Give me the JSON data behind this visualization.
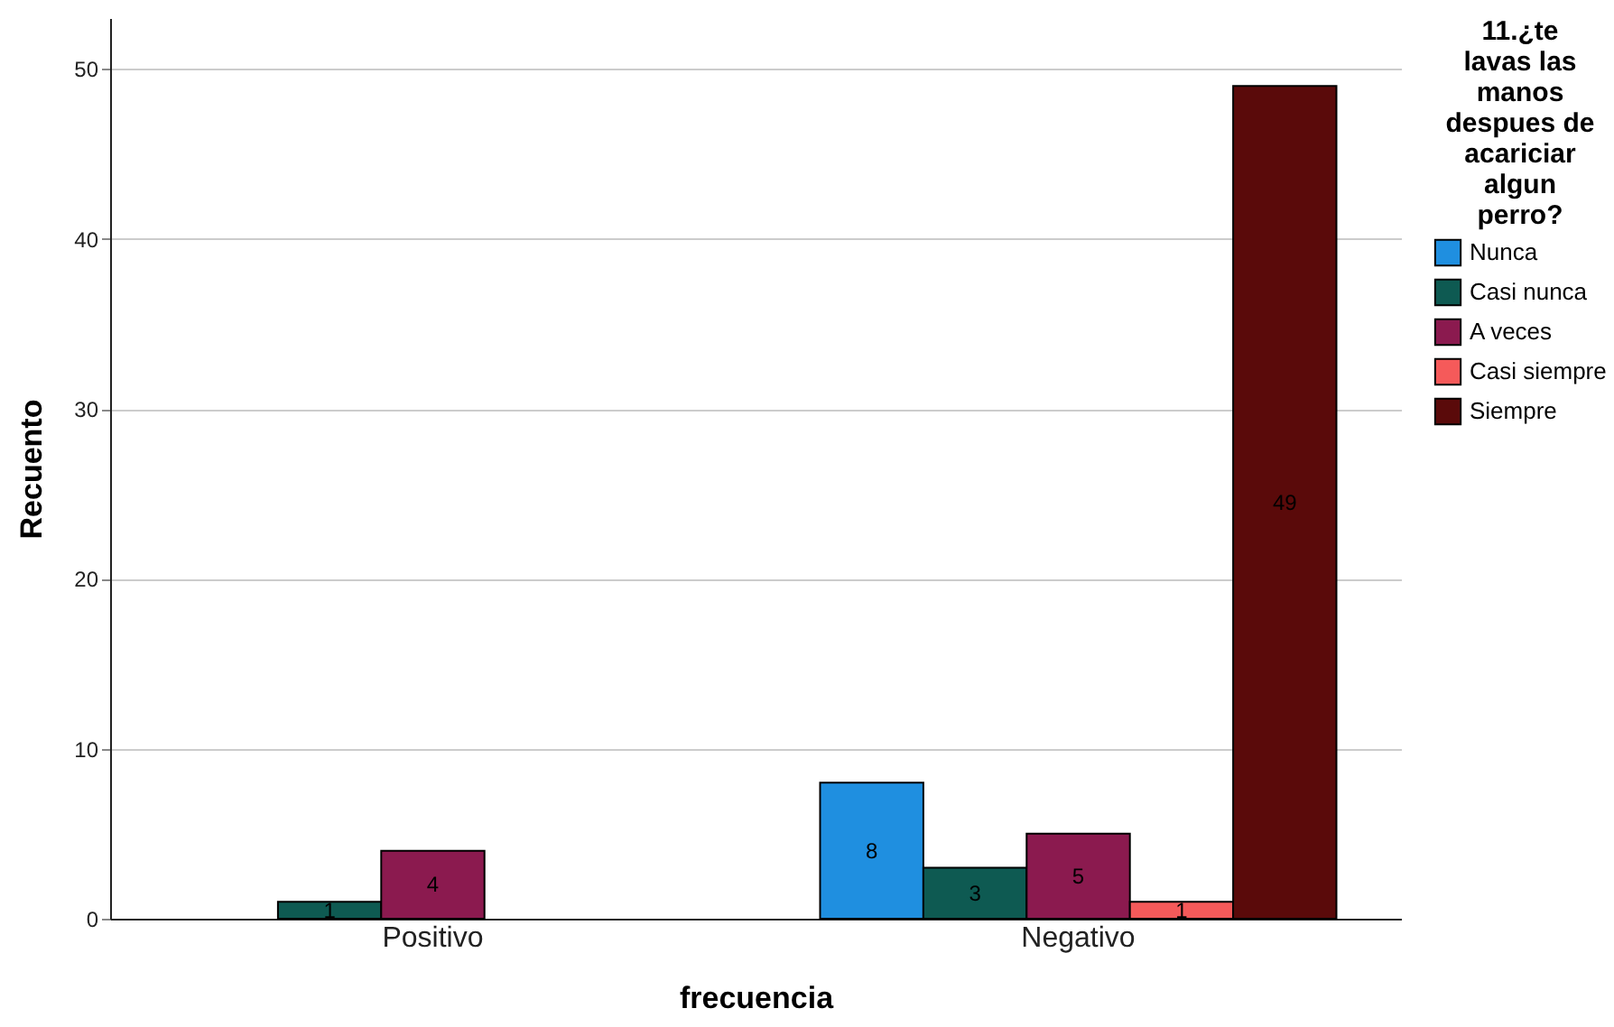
{
  "chart_data": {
    "type": "bar",
    "xlabel": "frecuencia",
    "ylabel": "Recuento",
    "legend_title": "11.¿te lavas las manos despues de acariciar algun perro?",
    "categories": [
      "Positivo",
      "Negativo"
    ],
    "series": [
      {
        "name": "Nunca",
        "color": "#1f8fe0",
        "values": [
          null,
          8
        ]
      },
      {
        "name": "Casi nunca",
        "color": "#0e5a52",
        "values": [
          1,
          3
        ]
      },
      {
        "name": "A veces",
        "color": "#8b1a4f",
        "values": [
          4,
          5
        ]
      },
      {
        "name": "Casi siempre",
        "color": "#f55a5a",
        "values": [
          null,
          1
        ]
      },
      {
        "name": "Siempre",
        "color": "#5a0a0a",
        "values": [
          null,
          49
        ]
      }
    ],
    "ylim": [
      0,
      53
    ],
    "yticks": [
      0,
      10,
      20,
      30,
      40,
      50
    ],
    "grid": "y",
    "legend": "right",
    "data_labels": true
  }
}
